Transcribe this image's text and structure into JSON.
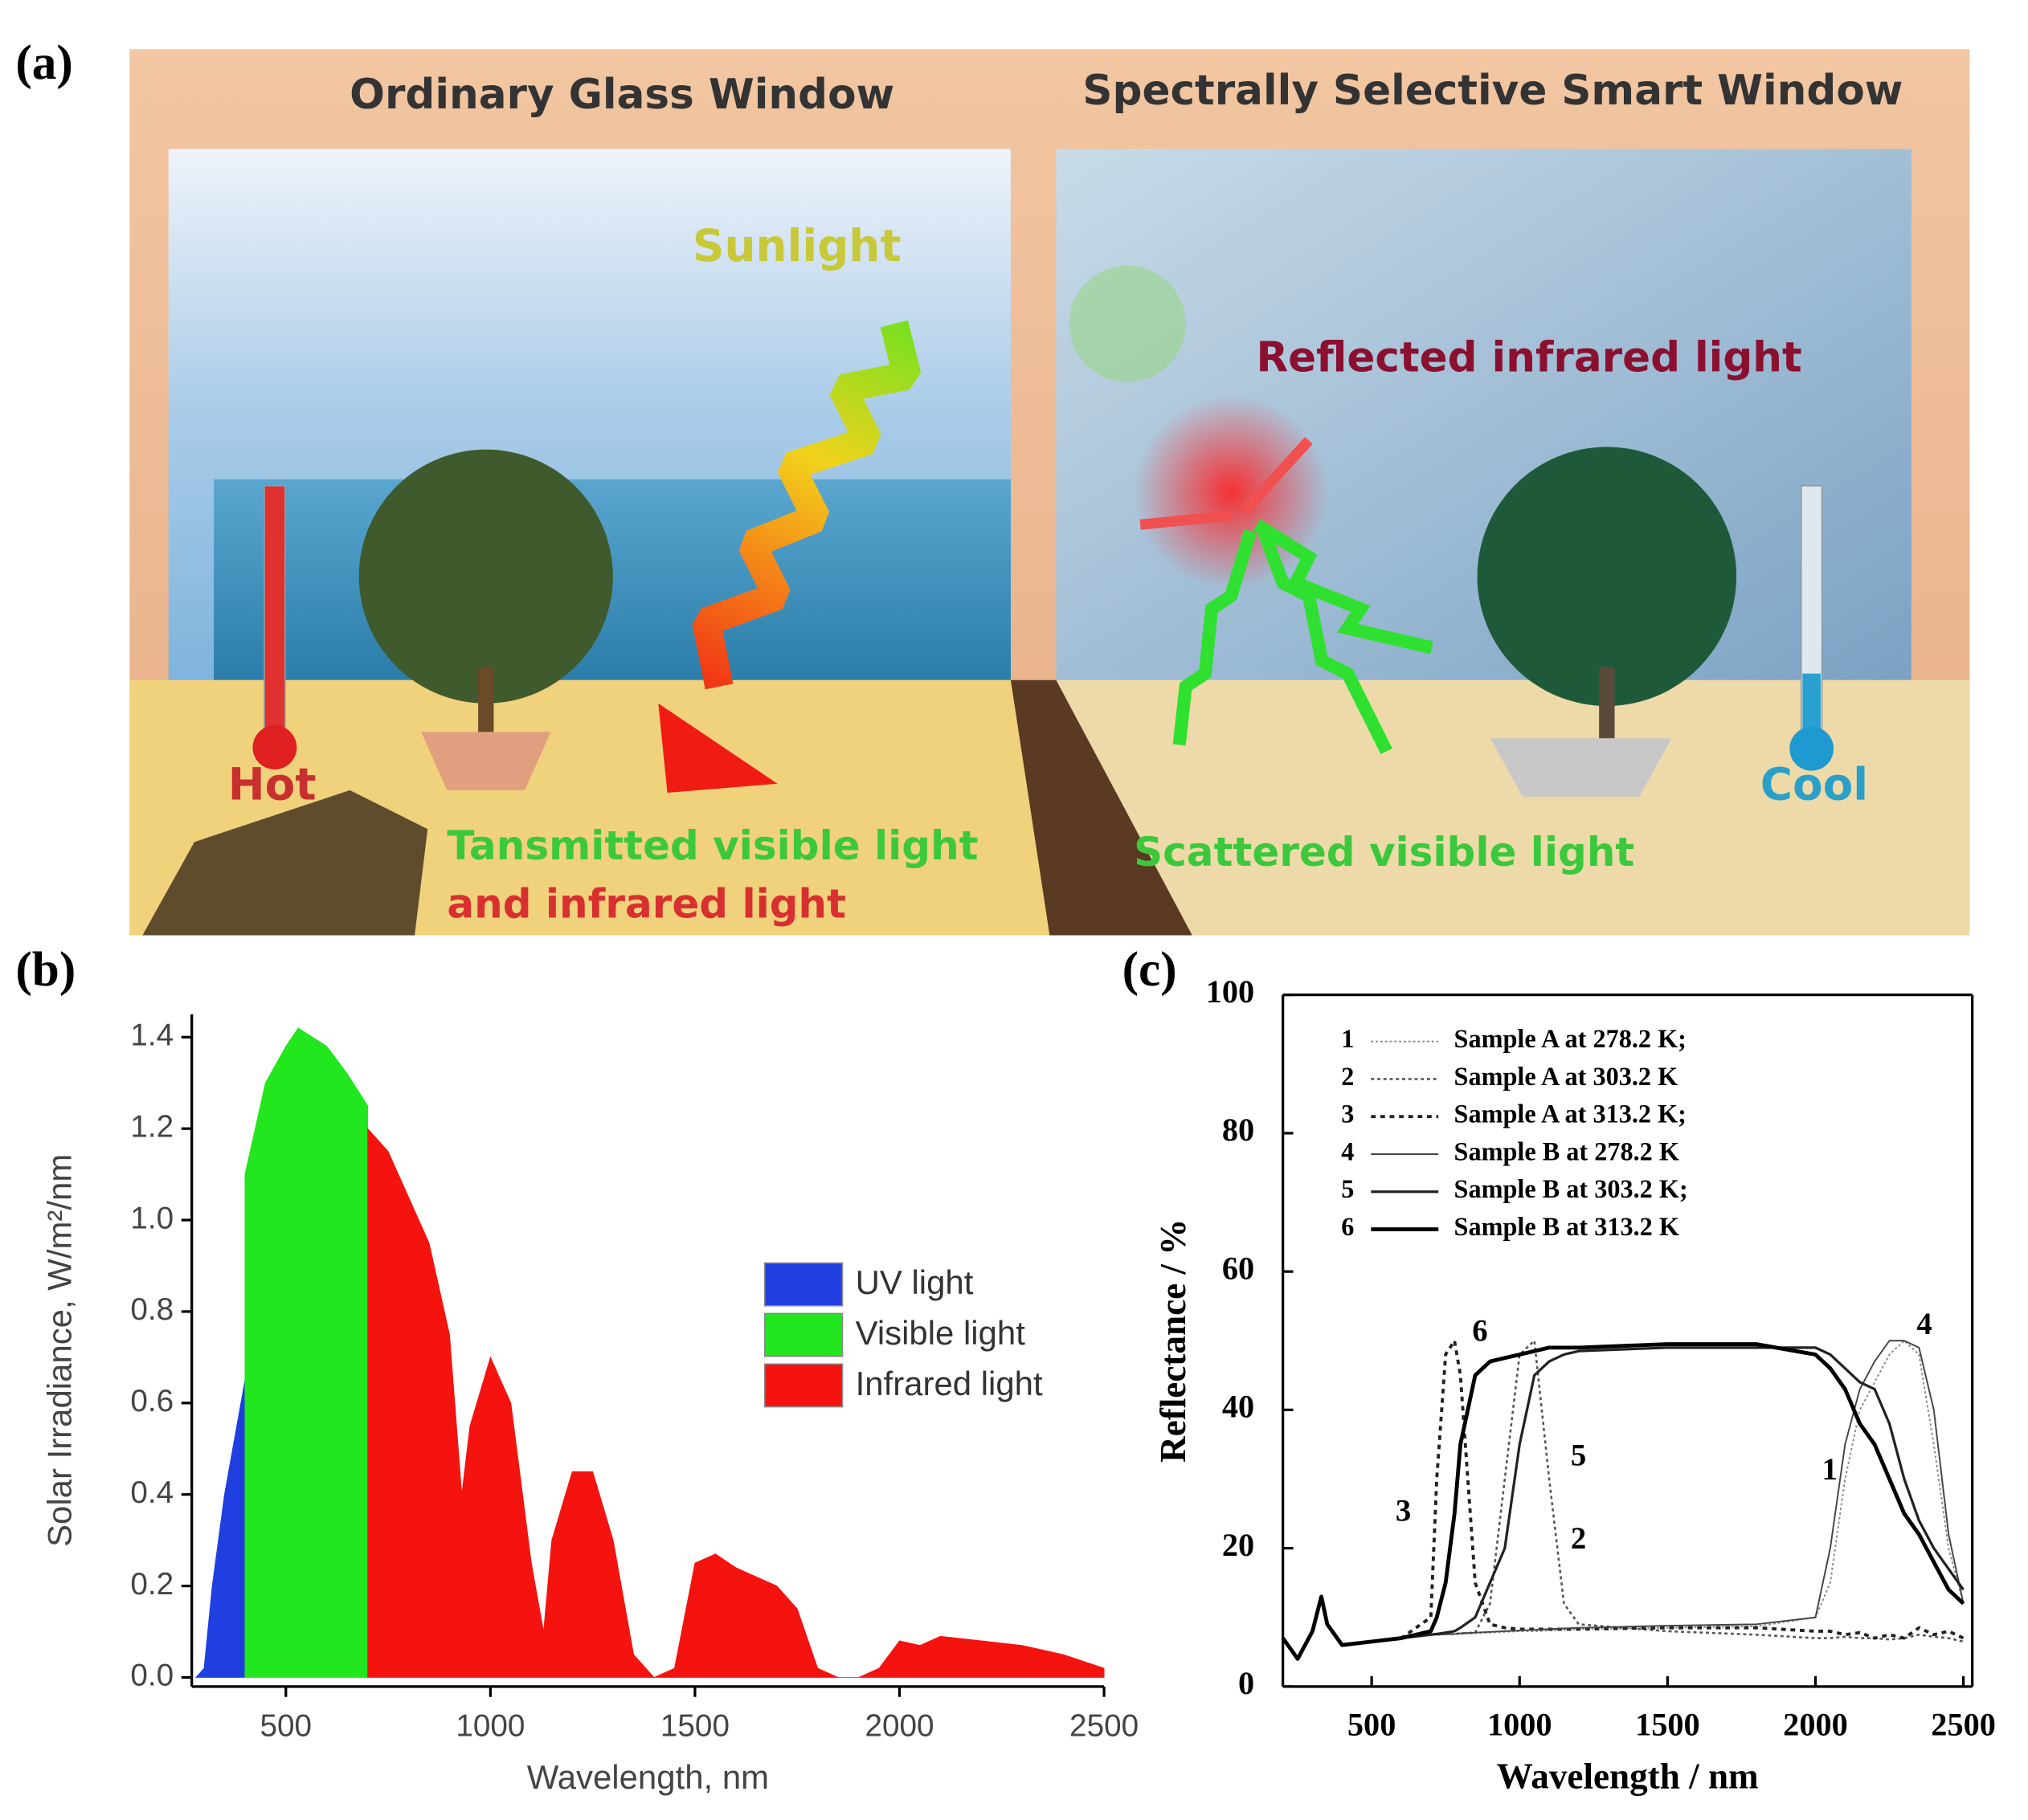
{
  "panels": {
    "a": "(a)",
    "b": "(b)",
    "c": "(c)"
  },
  "illustration": {
    "left_title": "Ordinary Glass Window",
    "right_title": "Spectrally Selective Smart Window",
    "sunlight": "Sunlight",
    "reflected": "Reflected infrared light",
    "hot": "Hot",
    "cool": "Cool",
    "transmitted_1": "Tansmitted visible light",
    "transmitted_2": "and infrared light",
    "scattered": "Scattered visible light"
  },
  "chart_data": [
    {
      "type": "area",
      "xlabel": "Wavelength, nm",
      "ylabel": "Solar Irradiance, W/m²/nm",
      "x": [
        280,
        300,
        320,
        350,
        380,
        400,
        450,
        500,
        530,
        600,
        650,
        700,
        750,
        800,
        850,
        900,
        930,
        950,
        1000,
        1050,
        1100,
        1130,
        1150,
        1200,
        1250,
        1300,
        1350,
        1400,
        1450,
        1500,
        1550,
        1600,
        1650,
        1700,
        1750,
        1800,
        1850,
        1900,
        1950,
        2000,
        2050,
        2100,
        2200,
        2300,
        2400,
        2500
      ],
      "series": [
        {
          "name": "UV light",
          "color": "#1f3fe0",
          "values": [
            0,
            0.02,
            0.2,
            0.4,
            0.55,
            0.65,
            null,
            null,
            null,
            null,
            null,
            null,
            null,
            null,
            null,
            null,
            null,
            null,
            null,
            null,
            null,
            null,
            null,
            null,
            null,
            null,
            null,
            null,
            null,
            null,
            null,
            null,
            null,
            null,
            null,
            null,
            null,
            null,
            null,
            null,
            null,
            null,
            null,
            null,
            null,
            null
          ]
        },
        {
          "name": "Visible light",
          "color": "#22e61e",
          "values": [
            null,
            null,
            null,
            null,
            null,
            1.1,
            1.3,
            1.38,
            1.42,
            1.38,
            1.32,
            1.25,
            null,
            null,
            null,
            null,
            null,
            null,
            null,
            null,
            null,
            null,
            null,
            null,
            null,
            null,
            null,
            null,
            null,
            null,
            null,
            null,
            null,
            null,
            null,
            null,
            null,
            null,
            null,
            null,
            null,
            null,
            null,
            null,
            null,
            null
          ]
        },
        {
          "name": "Infrared light",
          "color": "#f5130f",
          "values": [
            null,
            null,
            null,
            null,
            null,
            null,
            null,
            null,
            null,
            null,
            null,
            1.2,
            1.15,
            1.05,
            0.95,
            0.75,
            0.4,
            0.55,
            0.7,
            0.6,
            0.25,
            0.1,
            0.3,
            0.45,
            0.45,
            0.3,
            0.05,
            0,
            0.02,
            0.25,
            0.27,
            0.24,
            0.22,
            0.2,
            0.15,
            0.02,
            0,
            0,
            0.02,
            0.08,
            0.07,
            0.09,
            0.08,
            0.07,
            0.05,
            0.02
          ]
        }
      ],
      "xlim": [
        270,
        2500
      ],
      "xticks": [
        500,
        1000,
        1500,
        2000,
        2500
      ],
      "ylim": [
        -0.02,
        1.45
      ],
      "yticks": [
        {
          "value": 0,
          "label": "0.0"
        },
        {
          "value": 0.2,
          "label": "0.2"
        },
        {
          "value": 0.4,
          "label": "0.4"
        },
        {
          "value": 0.6,
          "label": "0.6"
        },
        {
          "value": 0.8,
          "label": "0.8"
        },
        {
          "value": 1.0,
          "label": "1.0"
        },
        {
          "value": 1.2,
          "label": "1.2"
        },
        {
          "value": 1.4,
          "label": "1.4"
        }
      ],
      "legend": "center right",
      "grid": false
    },
    {
      "type": "line",
      "xlabel": "Wavelength / nm",
      "ylabel": "Reflectance / %",
      "x": [
        200,
        250,
        300,
        330,
        350,
        400,
        500,
        600,
        700,
        720,
        750,
        780,
        800,
        850,
        900,
        950,
        1000,
        1050,
        1100,
        1150,
        1200,
        1500,
        1800,
        2000,
        2050,
        2100,
        2150,
        2200,
        2250,
        2300,
        2350,
        2400,
        2450,
        2500
      ],
      "series": [
        {
          "label": "1",
          "name": "Sample A at 278.2 K;",
          "color": "#888888",
          "style": "dotted",
          "width": 1.2,
          "values": [
            7,
            4,
            8,
            13,
            9,
            6,
            6.5,
            7,
            7.5,
            7.5,
            7.5,
            7.6,
            7.6,
            7.7,
            7.8,
            7.9,
            8,
            8,
            8.1,
            8.2,
            8.3,
            8.5,
            8.7,
            10,
            15,
            30,
            40,
            44,
            48,
            50,
            48,
            35,
            20,
            12
          ]
        },
        {
          "label": "2",
          "name": "Sample A at 303.2 K",
          "color": "#555555",
          "style": "dotted",
          "width": 1.6,
          "values": [
            7,
            4,
            8,
            13,
            9,
            6,
            6.5,
            7,
            7.5,
            7.5,
            7.6,
            7.6,
            7.7,
            7.8,
            12,
            30,
            48,
            50,
            30,
            12,
            9,
            8,
            7.5,
            7,
            7,
            7.2,
            7,
            7,
            6.8,
            7,
            7.5,
            7.2,
            7,
            6.5
          ]
        },
        {
          "label": "3",
          "name": "Sample A at 313.2 K;",
          "color": "#222222",
          "style": "dotted",
          "width": 2.4,
          "values": [
            7,
            4,
            8,
            13,
            9,
            6,
            6.5,
            7,
            10,
            30,
            48,
            50,
            45,
            15,
            9,
            8.5,
            8.3,
            8.3,
            8.3,
            8.3,
            8.3,
            8.5,
            8.5,
            8,
            8,
            7.5,
            7.8,
            7,
            7.5,
            7,
            8.5,
            7.5,
            8,
            7
          ]
        },
        {
          "label": "4",
          "name": "Sample B at 278.2 K",
          "color": "#444444",
          "style": "solid",
          "width": 1.2,
          "values": [
            7,
            4,
            8,
            13,
            9,
            6,
            6.5,
            7,
            7.5,
            7.5,
            7.6,
            7.6,
            7.7,
            7.8,
            7.9,
            8,
            8.1,
            8.2,
            8.3,
            8.4,
            8.5,
            8.8,
            9,
            10,
            20,
            35,
            43,
            47,
            50,
            50,
            49,
            40,
            22,
            12
          ]
        },
        {
          "label": "5",
          "name": "Sample B at 303.2 K;",
          "color": "#222222",
          "style": "solid",
          "width": 2,
          "values": [
            7,
            4,
            8,
            13,
            9,
            6,
            6.5,
            7,
            7.5,
            7.6,
            7.8,
            8,
            8.5,
            10,
            15,
            20,
            35,
            45,
            47,
            48,
            48.5,
            49,
            49,
            49,
            48,
            46,
            44,
            43,
            38,
            30,
            24,
            20,
            17,
            14
          ]
        },
        {
          "label": "6",
          "name": "Sample B at 313.2 K",
          "color": "#000000",
          "style": "solid",
          "width": 3,
          "values": [
            7,
            4,
            8,
            13,
            9,
            6,
            6.5,
            7,
            8,
            10,
            15,
            25,
            35,
            45,
            47,
            47.5,
            48,
            48.5,
            49,
            49,
            49,
            49.5,
            49.5,
            48,
            46,
            43,
            38,
            35,
            30,
            25,
            22,
            18,
            14,
            12
          ]
        }
      ],
      "annotations": [
        {
          "text": "6",
          "x": 866,
          "y": 51
        },
        {
          "text": "5",
          "x": 1199,
          "y": 33
        },
        {
          "text": "3",
          "x": 607,
          "y": 25
        },
        {
          "text": "2",
          "x": 1199,
          "y": 21
        },
        {
          "text": "1",
          "x": 2048,
          "y": 31
        },
        {
          "text": "4",
          "x": 2368,
          "y": 52
        }
      ],
      "xlim": [
        200,
        2530
      ],
      "xticks": [
        500,
        1000,
        1500,
        2000,
        2500
      ],
      "ylim": [
        0,
        100
      ],
      "yticks": [
        0,
        20,
        40,
        60,
        80,
        100
      ],
      "legend": "upper left",
      "grid": false
    }
  ]
}
